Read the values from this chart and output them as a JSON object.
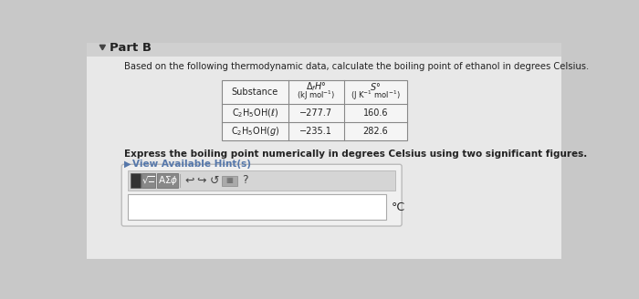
{
  "bg_outer": "#c8c8c8",
  "bg_main": "#e8e8e8",
  "bg_header_strip": "#d0d0d0",
  "part_label": "Part B",
  "question_text": "Based on the following thermodynamic data, calculate the boiling point of ethanol in degrees Celsius.",
  "row1_substance": "C$_2$H$_5$OH($\\ell$)",
  "row2_substance": "C$_2$H$_5$OH($g$)",
  "row1_dH": "−277.7",
  "row1_S": "160.6",
  "row2_dH": "−235.1",
  "row2_S": "282.6",
  "bold_text": "Express the boiling point numerically in degrees Celsius using two significant figures.",
  "hint_text": "View Available Hint(s)",
  "degree_c": "°C",
  "table_bg": "#f5f5f5",
  "table_border": "#888888",
  "input_box_bg": "#ffffff",
  "toolbar_bg": "#d5d5d5",
  "toolbar_border": "#bbbbbb",
  "outer_box_bg": "#f0f0f0",
  "outer_box_border": "#bbbbbb",
  "hint_color": "#5577aa",
  "text_color": "#222222"
}
